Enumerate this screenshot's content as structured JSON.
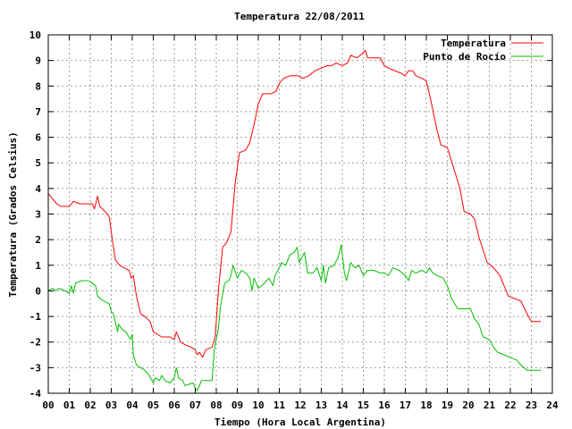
{
  "chart_data": {
    "type": "line",
    "title": "Temperatura 22/08/2011",
    "xlabel": "Tiempo (Hora Local Argentina)",
    "ylabel": "Temperatura (Grados Celsius)",
    "xlim": [
      0,
      24
    ],
    "ylim": [
      -4,
      10
    ],
    "x_ticks": [
      0,
      1,
      2,
      3,
      4,
      5,
      6,
      7,
      8,
      9,
      10,
      11,
      12,
      13,
      14,
      15,
      16,
      17,
      18,
      19,
      20,
      21,
      22,
      23,
      24
    ],
    "x_tick_labels": [
      "00",
      "01",
      "02",
      "03",
      "04",
      "05",
      "06",
      "07",
      "08",
      "09",
      "10",
      "11",
      "12",
      "13",
      "14",
      "15",
      "16",
      "17",
      "18",
      "19",
      "20",
      "21",
      "22",
      "23",
      "24"
    ],
    "y_ticks": [
      -4,
      -3,
      -2,
      -1,
      0,
      1,
      2,
      3,
      4,
      5,
      6,
      7,
      8,
      9,
      10
    ],
    "y_tick_labels": [
      "-4",
      "-3",
      "-2",
      "-1",
      "0",
      "1",
      "2",
      "3",
      "4",
      "5",
      "6",
      "7",
      "8",
      "9",
      "10"
    ],
    "grid": true,
    "legend_position": "top-right",
    "series": [
      {
        "name": "Temperatura",
        "color": "#ff0000",
        "points": [
          [
            0.0,
            3.8
          ],
          [
            0.2,
            3.6
          ],
          [
            0.4,
            3.4
          ],
          [
            0.6,
            3.3
          ],
          [
            1.0,
            3.3
          ],
          [
            1.2,
            3.5
          ],
          [
            1.5,
            3.4
          ],
          [
            1.8,
            3.4
          ],
          [
            2.1,
            3.4
          ],
          [
            2.2,
            3.2
          ],
          [
            2.35,
            3.7
          ],
          [
            2.45,
            3.3
          ],
          [
            2.7,
            3.1
          ],
          [
            2.9,
            2.9
          ],
          [
            3.05,
            2.0
          ],
          [
            3.2,
            1.2
          ],
          [
            3.4,
            1.0
          ],
          [
            3.6,
            0.9
          ],
          [
            3.85,
            0.8
          ],
          [
            3.95,
            0.5
          ],
          [
            4.05,
            0.6
          ],
          [
            4.2,
            -0.2
          ],
          [
            4.4,
            -0.9
          ],
          [
            4.6,
            -1.0
          ],
          [
            4.85,
            -1.2
          ],
          [
            5.0,
            -1.6
          ],
          [
            5.2,
            -1.7
          ],
          [
            5.4,
            -1.8
          ],
          [
            5.8,
            -1.8
          ],
          [
            6.0,
            -1.9
          ],
          [
            6.1,
            -1.6
          ],
          [
            6.3,
            -2.0
          ],
          [
            6.5,
            -2.1
          ],
          [
            6.8,
            -2.2
          ],
          [
            7.0,
            -2.3
          ],
          [
            7.1,
            -2.5
          ],
          [
            7.2,
            -2.4
          ],
          [
            7.35,
            -2.6
          ],
          [
            7.5,
            -2.3
          ],
          [
            7.8,
            -2.2
          ],
          [
            7.95,
            -1.8
          ],
          [
            8.1,
            0.0
          ],
          [
            8.3,
            1.7
          ],
          [
            8.5,
            1.9
          ],
          [
            8.7,
            2.3
          ],
          [
            8.9,
            4.2
          ],
          [
            9.1,
            5.4
          ],
          [
            9.4,
            5.5
          ],
          [
            9.6,
            5.8
          ],
          [
            9.8,
            6.5
          ],
          [
            10.0,
            7.3
          ],
          [
            10.2,
            7.7
          ],
          [
            10.6,
            7.7
          ],
          [
            10.85,
            7.8
          ],
          [
            11.0,
            8.1
          ],
          [
            11.2,
            8.3
          ],
          [
            11.5,
            8.4
          ],
          [
            11.9,
            8.4
          ],
          [
            12.1,
            8.3
          ],
          [
            12.4,
            8.4
          ],
          [
            12.7,
            8.6
          ],
          [
            13.0,
            8.7
          ],
          [
            13.3,
            8.8
          ],
          [
            13.5,
            8.8
          ],
          [
            13.7,
            8.9
          ],
          [
            14.0,
            8.8
          ],
          [
            14.25,
            8.9
          ],
          [
            14.4,
            9.2
          ],
          [
            14.7,
            9.1
          ],
          [
            15.0,
            9.3
          ],
          [
            15.1,
            9.4
          ],
          [
            15.2,
            9.1
          ],
          [
            15.5,
            9.1
          ],
          [
            15.8,
            9.1
          ],
          [
            16.0,
            8.8
          ],
          [
            16.2,
            8.7
          ],
          [
            16.5,
            8.6
          ],
          [
            16.8,
            8.5
          ],
          [
            17.0,
            8.4
          ],
          [
            17.15,
            8.6
          ],
          [
            17.35,
            8.6
          ],
          [
            17.5,
            8.4
          ],
          [
            17.8,
            8.3
          ],
          [
            18.0,
            8.2
          ],
          [
            18.2,
            7.5
          ],
          [
            18.5,
            6.3
          ],
          [
            18.7,
            5.7
          ],
          [
            19.0,
            5.6
          ],
          [
            19.3,
            4.8
          ],
          [
            19.6,
            4.0
          ],
          [
            19.8,
            3.1
          ],
          [
            20.1,
            3.0
          ],
          [
            20.3,
            2.8
          ],
          [
            20.5,
            2.1
          ],
          [
            20.7,
            1.6
          ],
          [
            20.9,
            1.1
          ],
          [
            21.2,
            0.9
          ],
          [
            21.5,
            0.6
          ],
          [
            21.7,
            0.2
          ],
          [
            21.9,
            -0.2
          ],
          [
            22.2,
            -0.3
          ],
          [
            22.5,
            -0.4
          ],
          [
            22.8,
            -0.9
          ],
          [
            23.0,
            -1.2
          ],
          [
            23.25,
            -1.2
          ],
          [
            23.45,
            -1.2
          ]
        ]
      },
      {
        "name": "Punto de Rocío",
        "color": "#00c000",
        "points": [
          [
            0.0,
            0.0
          ],
          [
            0.2,
            0.1
          ],
          [
            0.35,
            0.0
          ],
          [
            0.5,
            0.1
          ],
          [
            0.8,
            0.0
          ],
          [
            1.0,
            -0.1
          ],
          [
            1.1,
            0.2
          ],
          [
            1.2,
            -0.1
          ],
          [
            1.3,
            0.3
          ],
          [
            1.6,
            0.4
          ],
          [
            1.9,
            0.4
          ],
          [
            2.1,
            0.3
          ],
          [
            2.25,
            0.2
          ],
          [
            2.35,
            -0.2
          ],
          [
            2.45,
            -0.3
          ],
          [
            2.65,
            -0.4
          ],
          [
            2.9,
            -0.5
          ],
          [
            3.0,
            -0.8
          ],
          [
            3.1,
            -0.9
          ],
          [
            3.3,
            -1.6
          ],
          [
            3.35,
            -1.3
          ],
          [
            3.5,
            -1.5
          ],
          [
            3.7,
            -1.6
          ],
          [
            3.9,
            -1.9
          ],
          [
            4.0,
            -1.7
          ],
          [
            4.05,
            -2.5
          ],
          [
            4.2,
            -2.9
          ],
          [
            4.4,
            -3.0
          ],
          [
            4.6,
            -3.1
          ],
          [
            4.8,
            -3.3
          ],
          [
            5.0,
            -3.6
          ],
          [
            5.1,
            -3.4
          ],
          [
            5.3,
            -3.5
          ],
          [
            5.4,
            -3.3
          ],
          [
            5.55,
            -3.5
          ],
          [
            5.8,
            -3.6
          ],
          [
            6.0,
            -3.4
          ],
          [
            6.1,
            -3.0
          ],
          [
            6.2,
            -3.4
          ],
          [
            6.4,
            -3.5
          ],
          [
            6.5,
            -3.7
          ],
          [
            6.9,
            -3.6
          ],
          [
            7.0,
            -3.8
          ],
          [
            7.1,
            -3.9
          ],
          [
            7.3,
            -3.5
          ],
          [
            7.8,
            -3.5
          ],
          [
            7.9,
            -2.3
          ],
          [
            8.1,
            -1.5
          ],
          [
            8.2,
            -0.6
          ],
          [
            8.4,
            0.3
          ],
          [
            8.6,
            0.4
          ],
          [
            8.7,
            0.6
          ],
          [
            8.8,
            1.0
          ],
          [
            9.0,
            0.5
          ],
          [
            9.2,
            0.8
          ],
          [
            9.4,
            0.7
          ],
          [
            9.6,
            0.5
          ],
          [
            9.7,
            0.0
          ],
          [
            9.8,
            0.5
          ],
          [
            10.0,
            0.1
          ],
          [
            10.3,
            0.3
          ],
          [
            10.5,
            0.5
          ],
          [
            10.7,
            0.2
          ],
          [
            10.8,
            0.6
          ],
          [
            11.0,
            0.9
          ],
          [
            11.1,
            1.1
          ],
          [
            11.3,
            1.0
          ],
          [
            11.5,
            1.4
          ],
          [
            11.7,
            1.5
          ],
          [
            11.85,
            1.7
          ],
          [
            11.95,
            1.1
          ],
          [
            12.2,
            1.5
          ],
          [
            12.35,
            0.7
          ],
          [
            12.6,
            0.7
          ],
          [
            12.8,
            0.9
          ],
          [
            13.0,
            0.4
          ],
          [
            13.1,
            1.0
          ],
          [
            13.2,
            0.3
          ],
          [
            13.35,
            0.9
          ],
          [
            13.6,
            1.0
          ],
          [
            13.8,
            1.3
          ],
          [
            13.95,
            1.8
          ],
          [
            14.1,
            0.7
          ],
          [
            14.2,
            0.4
          ],
          [
            14.4,
            1.1
          ],
          [
            14.6,
            0.9
          ],
          [
            14.8,
            1.0
          ],
          [
            15.0,
            0.6
          ],
          [
            15.2,
            0.8
          ],
          [
            15.5,
            0.8
          ],
          [
            15.8,
            0.7
          ],
          [
            16.0,
            0.7
          ],
          [
            16.2,
            0.6
          ],
          [
            16.4,
            0.9
          ],
          [
            16.7,
            0.8
          ],
          [
            17.0,
            0.6
          ],
          [
            17.15,
            0.4
          ],
          [
            17.3,
            0.8
          ],
          [
            17.5,
            0.7
          ],
          [
            17.8,
            0.8
          ],
          [
            18.0,
            0.7
          ],
          [
            18.15,
            0.9
          ],
          [
            18.3,
            0.7
          ],
          [
            18.5,
            0.6
          ],
          [
            18.8,
            0.5
          ],
          [
            19.0,
            0.2
          ],
          [
            19.2,
            -0.3
          ],
          [
            19.5,
            -0.7
          ],
          [
            19.9,
            -0.7
          ],
          [
            20.1,
            -0.7
          ],
          [
            20.3,
            -1.1
          ],
          [
            20.5,
            -1.3
          ],
          [
            20.7,
            -1.8
          ],
          [
            21.0,
            -1.9
          ],
          [
            21.2,
            -2.2
          ],
          [
            21.4,
            -2.4
          ],
          [
            21.7,
            -2.5
          ],
          [
            22.0,
            -2.6
          ],
          [
            22.3,
            -2.7
          ],
          [
            22.5,
            -2.9
          ],
          [
            22.8,
            -3.1
          ],
          [
            23.1,
            -3.1
          ],
          [
            23.45,
            -3.1
          ]
        ]
      }
    ]
  }
}
